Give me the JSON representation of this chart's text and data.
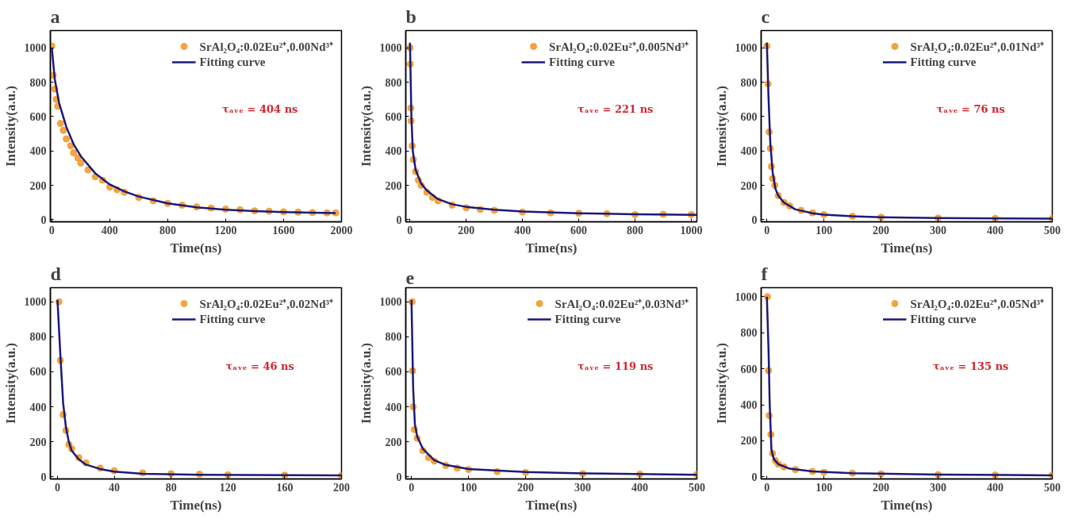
{
  "chart_data": [
    {
      "type": "scatter",
      "title": "a",
      "xlabel": "Time(ns)",
      "ylabel": "Intensity(a.u.)",
      "xlim": [
        -10,
        2000
      ],
      "ylim": [
        -12,
        1100
      ],
      "xticks": [
        0,
        400,
        800,
        1200,
        1600,
        2000
      ],
      "yticks": [
        0,
        200,
        400,
        600,
        800,
        1000
      ],
      "grid": false,
      "legend": "top right",
      "annotations": [
        "τₐᵥₑ = 404 ns"
      ],
      "series": [
        {
          "name": "SrAl₂O₄:0.02Eu²⁺,0.00Nd³⁺",
          "color": "#f39a2e",
          "marker": "circle",
          "x": [
            0,
            10,
            20,
            30,
            40,
            60,
            80,
            100,
            130,
            150,
            180,
            200,
            250,
            300,
            350,
            400,
            450,
            500,
            600,
            700,
            800,
            900,
            1000,
            1100,
            1200,
            1300,
            1400,
            1500,
            1600,
            1700,
            1800,
            1900,
            1960
          ],
          "values": [
            1010,
            840,
            760,
            700,
            660,
            560,
            520,
            470,
            430,
            390,
            360,
            330,
            290,
            250,
            230,
            190,
            175,
            160,
            130,
            110,
            95,
            85,
            75,
            68,
            62,
            58,
            52,
            50,
            46,
            44,
            42,
            40,
            40
          ]
        },
        {
          "name": "Fitting curve",
          "color": "#1c1a78",
          "type": "line",
          "x": [
            0,
            20,
            50,
            100,
            150,
            200,
            300,
            400,
            500,
            600,
            800,
            1000,
            1200,
            1400,
            1600,
            1800,
            1960
          ],
          "values": [
            1000,
            820,
            680,
            540,
            440,
            370,
            270,
            205,
            165,
            135,
            95,
            72,
            58,
            50,
            45,
            41,
            39
          ]
        }
      ]
    },
    {
      "type": "scatter",
      "title": "b",
      "xlabel": "Time(ns)",
      "ylabel": "Intensity(a.u.)",
      "xlim": [
        -15,
        1020
      ],
      "ylim": [
        -12,
        1100
      ],
      "xticks": [
        0,
        200,
        400,
        600,
        800,
        1000
      ],
      "yticks": [
        0,
        200,
        400,
        600,
        800,
        1000
      ],
      "grid": false,
      "legend": "top right",
      "annotations": [
        "τₐᵥₑ = 221 ns"
      ],
      "series": [
        {
          "name": "SrAl₂O₄:0.02Eu²⁺,0.005Nd³⁺",
          "color": "#f39a2e",
          "marker": "circle",
          "x": [
            0,
            1,
            3,
            4,
            8,
            12,
            20,
            30,
            40,
            60,
            80,
            100,
            150,
            200,
            250,
            300,
            400,
            500,
            600,
            700,
            800,
            900,
            1000
          ],
          "values": [
            1000,
            905,
            650,
            575,
            430,
            350,
            280,
            230,
            200,
            160,
            130,
            110,
            85,
            70,
            60,
            55,
            45,
            40,
            38,
            35,
            30,
            32,
            30
          ]
        },
        {
          "name": "Fitting curve",
          "color": "#1c1a78",
          "type": "line",
          "x": [
            0,
            5,
            10,
            20,
            40,
            60,
            100,
            150,
            200,
            300,
            400,
            600,
            800,
            1020
          ],
          "values": [
            1030,
            600,
            400,
            290,
            210,
            170,
            120,
            90,
            75,
            58,
            48,
            38,
            32,
            28
          ]
        }
      ]
    },
    {
      "type": "scatter",
      "title": "c",
      "xlabel": "Time(ns)",
      "ylabel": "Intensity(a.u.)",
      "xlim": [
        -10,
        500
      ],
      "ylim": [
        -12,
        1100
      ],
      "xticks": [
        0,
        100,
        200,
        300,
        400,
        500
      ],
      "yticks": [
        0,
        200,
        400,
        600,
        800,
        1000
      ],
      "grid": false,
      "legend": "top right",
      "annotations": [
        "τₐᵥₑ = 76 ns"
      ],
      "series": [
        {
          "name": "SrAl₂O₄:0.02Eu²⁺,0.01Nd³⁺",
          "color": "#f39a2e",
          "marker": "circle",
          "x": [
            0,
            2,
            4,
            6,
            8,
            10,
            14,
            20,
            30,
            40,
            60,
            80,
            100,
            150,
            200,
            300,
            400,
            500
          ],
          "values": [
            1010,
            790,
            510,
            415,
            310,
            240,
            200,
            140,
            100,
            80,
            55,
            40,
            30,
            20,
            15,
            10,
            8,
            8
          ]
        },
        {
          "name": "Fitting curve",
          "color": "#1c1a78",
          "type": "line",
          "x": [
            0,
            3,
            6,
            10,
            15,
            20,
            30,
            50,
            80,
            100,
            150,
            200,
            300,
            500
          ],
          "values": [
            1030,
            700,
            450,
            280,
            180,
            140,
            100,
            60,
            38,
            30,
            20,
            15,
            10,
            6
          ]
        }
      ]
    },
    {
      "type": "scatter",
      "title": "d",
      "xlabel": "Time(ns)",
      "ylabel": "Intensity(a.u.)",
      "xlim": [
        -5,
        200
      ],
      "ylim": [
        -12,
        1080
      ],
      "xticks": [
        0,
        40,
        80,
        120,
        160,
        200
      ],
      "yticks": [
        0,
        200,
        400,
        600,
        800,
        1000
      ],
      "grid": false,
      "legend": "top right",
      "annotations": [
        "τₐᵥₑ = 46 ns"
      ],
      "series": [
        {
          "name": "SrAl₂O₄:0.02Eu²⁺,0.02Nd³⁺",
          "color": "#f39a2e",
          "marker": "circle",
          "x": [
            1,
            2,
            4,
            6,
            8,
            10,
            15,
            20,
            30,
            40,
            60,
            80,
            100,
            120,
            160,
            200
          ],
          "values": [
            1000,
            665,
            355,
            265,
            185,
            160,
            110,
            80,
            50,
            35,
            22,
            18,
            15,
            12,
            10,
            8
          ]
        },
        {
          "name": "Fitting curve",
          "color": "#1c1a78",
          "type": "line",
          "x": [
            0,
            2,
            4,
            6,
            8,
            10,
            15,
            20,
            30,
            40,
            60,
            100,
            200
          ],
          "values": [
            1010,
            700,
            420,
            280,
            200,
            150,
            100,
            70,
            45,
            30,
            18,
            12,
            8
          ]
        }
      ]
    },
    {
      "type": "scatter",
      "title": "e",
      "xlabel": "Time(ns)",
      "ylabel": "Intensity(a.u.)",
      "xlim": [
        -10,
        500
      ],
      "ylim": [
        -12,
        1080
      ],
      "xticks": [
        0,
        100,
        200,
        300,
        400,
        500
      ],
      "yticks": [
        0,
        200,
        400,
        600,
        800,
        1000
      ],
      "grid": false,
      "legend": "top right",
      "annotations": [
        "τₐᵥₑ = 119 ns"
      ],
      "series": [
        {
          "name": "SrAl₂O₄:0.02Eu²⁺,0.03Nd³⁺",
          "color": "#f39a2e",
          "marker": "circle",
          "x": [
            1,
            2,
            3,
            5,
            10,
            20,
            30,
            40,
            60,
            80,
            100,
            150,
            200,
            300,
            400,
            500
          ],
          "values": [
            1000,
            605,
            400,
            270,
            220,
            150,
            110,
            90,
            65,
            50,
            42,
            30,
            25,
            18,
            15,
            14
          ]
        },
        {
          "name": "Fitting curve",
          "color": "#1c1a78",
          "type": "line",
          "x": [
            0,
            3,
            6,
            10,
            20,
            40,
            60,
            100,
            200,
            300,
            500
          ],
          "values": [
            1010,
            500,
            300,
            230,
            160,
            95,
            68,
            45,
            28,
            20,
            12
          ]
        }
      ]
    },
    {
      "type": "scatter",
      "title": "f",
      "xlabel": "Time(ns)",
      "ylabel": "Intensity(a.u.)",
      "xlim": [
        -10,
        500
      ],
      "ylim": [
        -12,
        1050
      ],
      "xticks": [
        0,
        100,
        200,
        300,
        400,
        500
      ],
      "yticks": [
        0,
        200,
        400,
        600,
        800,
        1000
      ],
      "grid": false,
      "legend": "top right",
      "annotations": [
        "τₐᵥₑ = 135 ns"
      ],
      "series": [
        {
          "name": "SrAl₂O₄:0.02Eu²⁺,0.05Nd³⁺",
          "color": "#f39a2e",
          "marker": "circle",
          "x": [
            1,
            3,
            4,
            7,
            10,
            15,
            20,
            30,
            50,
            80,
            100,
            150,
            200,
            300,
            400,
            500
          ],
          "values": [
            1000,
            590,
            340,
            235,
            130,
            90,
            70,
            55,
            40,
            30,
            25,
            20,
            15,
            12,
            10,
            10
          ]
        },
        {
          "name": "Fitting curve",
          "color": "#1c1a78",
          "type": "line",
          "x": [
            0,
            3,
            5,
            8,
            12,
            20,
            40,
            80,
            150,
            300,
            500
          ],
          "values": [
            1000,
            700,
            400,
            150,
            100,
            70,
            45,
            30,
            20,
            12,
            8
          ]
        }
      ]
    }
  ]
}
